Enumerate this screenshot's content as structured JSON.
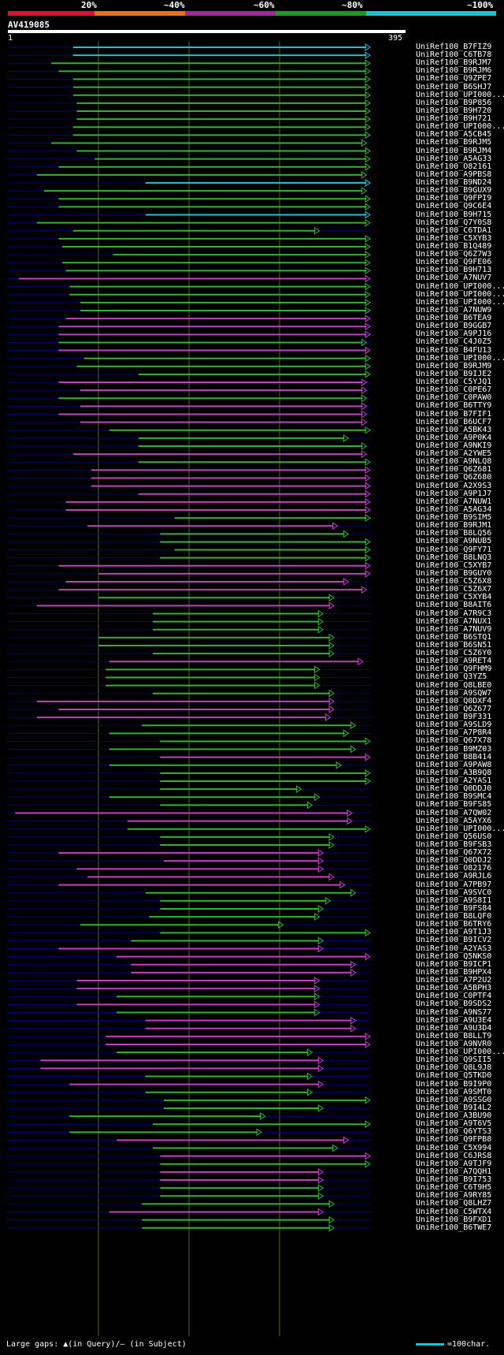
{
  "legend": {
    "labels": [
      "20%",
      "~40%",
      "~60%",
      "~80%",
      "~100%"
    ],
    "colors": [
      "#e0102d",
      "#e8701a",
      "#a0289b",
      "#1b9a1f",
      "#19c3d3"
    ]
  },
  "query": {
    "id": "AV419085",
    "start": "1",
    "end": "395"
  },
  "footer": {
    "gaps_label": "Large gaps: ▲(in Query)/— (in Subject)",
    "scale_label": "=100char."
  },
  "colors": {
    "cyan": "#19c3d3",
    "green": "#2fb52f",
    "magenta": "#c43fc3",
    "guide": "#000080",
    "grid": "#4d6b1a"
  },
  "hits": [
    {
      "name": "UniRef100_B7FIZ9",
      "color": "cyan",
      "start": 18,
      "end": 100
    },
    {
      "name": "UniRef100_C6TB78",
      "color": "cyan",
      "start": 18,
      "end": 100
    },
    {
      "name": "UniRef100_B9RJM7",
      "color": "green",
      "start": 12,
      "end": 100
    },
    {
      "name": "UniRef100_B9RJM6",
      "color": "green",
      "start": 14,
      "end": 100
    },
    {
      "name": "UniRef100_Q9ZPE7",
      "color": "green",
      "start": 18,
      "end": 100
    },
    {
      "name": "UniRef100_B6SHJ7",
      "color": "green",
      "start": 18,
      "end": 100
    },
    {
      "name": "UniRef100_UPI000...",
      "color": "green",
      "start": 18,
      "end": 100
    },
    {
      "name": "UniRef100_B9P856",
      "color": "green",
      "start": 19,
      "end": 100
    },
    {
      "name": "UniRef100_B9H720",
      "color": "green",
      "start": 19,
      "end": 100
    },
    {
      "name": "UniRef100_B9H721",
      "color": "green",
      "start": 19,
      "end": 100
    },
    {
      "name": "UniRef100_UPI000...",
      "color": "green",
      "start": 18,
      "end": 100
    },
    {
      "name": "UniRef100_A5CB45",
      "color": "green",
      "start": 18,
      "end": 100
    },
    {
      "name": "UniRef100_B9RJM5",
      "color": "green",
      "start": 12,
      "end": 99
    },
    {
      "name": "UniRef100_B9RJM4",
      "color": "green",
      "start": 19,
      "end": 100
    },
    {
      "name": "UniRef100_A5AG33",
      "color": "green",
      "start": 24,
      "end": 100
    },
    {
      "name": "UniRef100_O82161",
      "color": "green",
      "start": 14,
      "end": 100
    },
    {
      "name": "UniRef100_A9PBS8",
      "color": "green",
      "start": 8,
      "end": 99
    },
    {
      "name": "UniRef100_B9ND24",
      "color": "cyan",
      "start": 38,
      "end": 100
    },
    {
      "name": "UniRef100_B9GUX9",
      "color": "green",
      "start": 10,
      "end": 99
    },
    {
      "name": "UniRef100_Q9FPI9",
      "color": "green",
      "start": 14,
      "end": 100
    },
    {
      "name": "UniRef100_Q9C6E4",
      "color": "green",
      "start": 14,
      "end": 100
    },
    {
      "name": "UniRef100_B9H715",
      "color": "cyan",
      "start": 38,
      "end": 100
    },
    {
      "name": "UniRef100_Q7Y0S8",
      "color": "green",
      "start": 8,
      "end": 100
    },
    {
      "name": "UniRef100_C6TDA1",
      "color": "green",
      "start": 18,
      "end": 86
    },
    {
      "name": "UniRef100_C5XYB3",
      "color": "green",
      "start": 14,
      "end": 100
    },
    {
      "name": "UniRef100_B1Q489",
      "color": "green",
      "start": 15,
      "end": 100
    },
    {
      "name": "UniRef100_Q6Z7W3",
      "color": "green",
      "start": 29,
      "end": 100
    },
    {
      "name": "UniRef100_Q9FE06",
      "color": "green",
      "start": 15,
      "end": 100
    },
    {
      "name": "UniRef100_B9H713",
      "color": "green",
      "start": 16,
      "end": 100
    },
    {
      "name": "UniRef100_A7NUV7",
      "color": "magenta",
      "start": 3,
      "end": 100
    },
    {
      "name": "UniRef100_UPI000...",
      "color": "green",
      "start": 17,
      "end": 100
    },
    {
      "name": "UniRef100_UPI000...",
      "color": "green",
      "start": 17,
      "end": 100
    },
    {
      "name": "UniRef100_UPI000...",
      "color": "green",
      "start": 20,
      "end": 100
    },
    {
      "name": "UniRef100_A7NUW9",
      "color": "green",
      "start": 20,
      "end": 100
    },
    {
      "name": "UniRef100_B6TEA9",
      "color": "magenta",
      "start": 16,
      "end": 100
    },
    {
      "name": "UniRef100_B9GGB7",
      "color": "magenta",
      "start": 14,
      "end": 100
    },
    {
      "name": "UniRef100_A9PJ16",
      "color": "magenta",
      "start": 14,
      "end": 100
    },
    {
      "name": "UniRef100_C4J0Z5",
      "color": "green",
      "start": 14,
      "end": 99
    },
    {
      "name": "UniRef100_B4FU13",
      "color": "magenta",
      "start": 14,
      "end": 100
    },
    {
      "name": "UniRef100_UPI000...",
      "color": "green",
      "start": 21,
      "end": 100
    },
    {
      "name": "UniRef100_B9RJM9",
      "color": "green",
      "start": 19,
      "end": 100
    },
    {
      "name": "UniRef100_B9IJE2",
      "color": "green",
      "start": 36,
      "end": 100
    },
    {
      "name": "UniRef100_C5YJQ1",
      "color": "magenta",
      "start": 14,
      "end": 99
    },
    {
      "name": "UniRef100_C0PE67",
      "color": "magenta",
      "start": 20,
      "end": 99
    },
    {
      "name": "UniRef100_C0PAW0",
      "color": "green",
      "start": 14,
      "end": 99
    },
    {
      "name": "UniRef100_B6TTY9",
      "color": "magenta",
      "start": 20,
      "end": 99
    },
    {
      "name": "UniRef100_B7FIF1",
      "color": "magenta",
      "start": 14,
      "end": 99
    },
    {
      "name": "UniRef100_B6UCF7",
      "color": "magenta",
      "start": 20,
      "end": 99
    },
    {
      "name": "UniRef100_A5BK43",
      "color": "green",
      "start": 28,
      "end": 100
    },
    {
      "name": "UniRef100_A9P0K4",
      "color": "green",
      "start": 36,
      "end": 94
    },
    {
      "name": "UniRef100_A9NKI9",
      "color": "green",
      "start": 36,
      "end": 99
    },
    {
      "name": "UniRef100_A2YWE5",
      "color": "magenta",
      "start": 18,
      "end": 99
    },
    {
      "name": "UniRef100_A9NLQ8",
      "color": "green",
      "start": 36,
      "end": 100
    },
    {
      "name": "UniRef100_Q6Z681",
      "color": "magenta",
      "start": 23,
      "end": 100
    },
    {
      "name": "UniRef100_Q6Z680",
      "color": "magenta",
      "start": 23,
      "end": 100
    },
    {
      "name": "UniRef100_A2X9S3",
      "color": "magenta",
      "start": 23,
      "end": 100
    },
    {
      "name": "UniRef100_A9P1J7",
      "color": "magenta",
      "start": 36,
      "end": 100
    },
    {
      "name": "UniRef100_A7NUW1",
      "color": "magenta",
      "start": 16,
      "end": 100
    },
    {
      "name": "UniRef100_A5AG34",
      "color": "magenta",
      "start": 16,
      "end": 100
    },
    {
      "name": "UniRef100_B9SIM5",
      "color": "green",
      "start": 46,
      "end": 100
    },
    {
      "name": "UniRef100_B9RJM1",
      "color": "magenta",
      "start": 22,
      "end": 91
    },
    {
      "name": "UniRef100_B8LQ56",
      "color": "green",
      "start": 42,
      "end": 94
    },
    {
      "name": "UniRef100_A9NUB5",
      "color": "green",
      "start": 42,
      "end": 100
    },
    {
      "name": "UniRef100_Q9FY71",
      "color": "green",
      "start": 46,
      "end": 100
    },
    {
      "name": "UniRef100_B8LNQ3",
      "color": "green",
      "start": 42,
      "end": 100
    },
    {
      "name": "UniRef100_C5XYB7",
      "color": "magenta",
      "start": 14,
      "end": 100
    },
    {
      "name": "UniRef100_B9GUY0",
      "color": "magenta",
      "start": 25,
      "end": 100
    },
    {
      "name": "UniRef100_C5Z6X8",
      "color": "magenta",
      "start": 16,
      "end": 94
    },
    {
      "name": "UniRef100_C5Z6X7",
      "color": "magenta",
      "start": 14,
      "end": 99
    },
    {
      "name": "UniRef100_C5XYB4",
      "color": "green",
      "start": 25,
      "end": 90
    },
    {
      "name": "UniRef100_B8AIT6",
      "color": "magenta",
      "start": 8,
      "end": 90
    },
    {
      "name": "UniRef100_A7R9C3",
      "color": "green",
      "start": 40,
      "end": 87
    },
    {
      "name": "UniRef100_A7NUX1",
      "color": "green",
      "start": 40,
      "end": 87
    },
    {
      "name": "UniRef100_A7NUV9",
      "color": "green",
      "start": 40,
      "end": 87
    },
    {
      "name": "UniRef100_B6STQ1",
      "color": "green",
      "start": 25,
      "end": 90
    },
    {
      "name": "UniRef100_B6SN51",
      "color": "green",
      "start": 25,
      "end": 90
    },
    {
      "name": "UniRef100_C5Z6Y0",
      "color": "green",
      "start": 40,
      "end": 90
    },
    {
      "name": "UniRef100_A9RET4",
      "color": "magenta",
      "start": 28,
      "end": 98
    },
    {
      "name": "UniRef100_Q9FHM9",
      "color": "green",
      "start": 27,
      "end": 86
    },
    {
      "name": "UniRef100_Q3YZ5",
      "color": "green",
      "start": 27,
      "end": 86
    },
    {
      "name": "UniRef100_Q8LBE0",
      "color": "green",
      "start": 27,
      "end": 86
    },
    {
      "name": "UniRef100_A9SQW7",
      "color": "green",
      "start": 40,
      "end": 90
    },
    {
      "name": "UniRef100_Q0DXF4",
      "color": "magenta",
      "start": 8,
      "end": 90
    },
    {
      "name": "UniRef100_Q6Z677",
      "color": "magenta",
      "start": 14,
      "end": 90
    },
    {
      "name": "UniRef100_B9F331",
      "color": "magenta",
      "start": 8,
      "end": 89
    },
    {
      "name": "UniRef100_A9SLD9",
      "color": "green",
      "start": 37,
      "end": 96
    },
    {
      "name": "UniRef100_A7P8R4",
      "color": "green",
      "start": 28,
      "end": 94
    },
    {
      "name": "UniRef100_Q67X78",
      "color": "green",
      "start": 42,
      "end": 100
    },
    {
      "name": "UniRef100_B9MZ03",
      "color": "green",
      "start": 28,
      "end": 96
    },
    {
      "name": "UniRef100_B8B414",
      "color": "magenta",
      "start": 42,
      "end": 100
    },
    {
      "name": "UniRef100_A9PAW8",
      "color": "green",
      "start": 28,
      "end": 92
    },
    {
      "name": "UniRef100_A3B9Q8",
      "color": "green",
      "start": 42,
      "end": 100
    },
    {
      "name": "UniRef100_A2YAS1",
      "color": "green",
      "start": 42,
      "end": 100
    },
    {
      "name": "UniRef100_Q0DDJ0",
      "color": "green",
      "start": 42,
      "end": 81
    },
    {
      "name": "UniRef100_B9SMC4",
      "color": "green",
      "start": 28,
      "end": 86
    },
    {
      "name": "UniRef100_B9FS85",
      "color": "green",
      "start": 42,
      "end": 84
    },
    {
      "name": "UniRef100_A7QW02",
      "color": "magenta",
      "start": 2,
      "end": 95
    },
    {
      "name": "UniRef100_A5AYX6",
      "color": "magenta",
      "start": 33,
      "end": 95
    },
    {
      "name": "UniRef100_UPI000...",
      "color": "green",
      "start": 33,
      "end": 100
    },
    {
      "name": "UniRef100_Q56US0",
      "color": "green",
      "start": 42,
      "end": 90
    },
    {
      "name": "UniRef100_B9FSB3",
      "color": "green",
      "start": 42,
      "end": 90
    },
    {
      "name": "UniRef100_Q67X72",
      "color": "magenta",
      "start": 14,
      "end": 87
    },
    {
      "name": "UniRef100_Q0DDJ2",
      "color": "magenta",
      "start": 43,
      "end": 87
    },
    {
      "name": "UniRef100_O82176",
      "color": "magenta",
      "start": 19,
      "end": 87
    },
    {
      "name": "UniRef100_A9RJL6",
      "color": "magenta",
      "start": 22,
      "end": 90
    },
    {
      "name": "UniRef100_A7PB97",
      "color": "magenta",
      "start": 14,
      "end": 93
    },
    {
      "name": "UniRef100_A9SVC0",
      "color": "green",
      "start": 38,
      "end": 96
    },
    {
      "name": "UniRef100_A9S8I1",
      "color": "green",
      "start": 42,
      "end": 89
    },
    {
      "name": "UniRef100_B9FS84",
      "color": "green",
      "start": 42,
      "end": 87
    },
    {
      "name": "UniRef100_B8LQF0",
      "color": "green",
      "start": 39,
      "end": 86
    },
    {
      "name": "UniRef100_B6TRY6",
      "color": "green",
      "start": 20,
      "end": 76
    },
    {
      "name": "UniRef100_A9T1J3",
      "color": "green",
      "start": 42,
      "end": 100
    },
    {
      "name": "UniRef100_B9ICV2",
      "color": "green",
      "start": 34,
      "end": 87
    },
    {
      "name": "UniRef100_A2YAS3",
      "color": "magenta",
      "start": 14,
      "end": 87
    },
    {
      "name": "UniRef100_Q5NKS0",
      "color": "magenta",
      "start": 30,
      "end": 100
    },
    {
      "name": "UniRef100_B9ICP1",
      "color": "magenta",
      "start": 34,
      "end": 96
    },
    {
      "name": "UniRef100_B9HPX4",
      "color": "magenta",
      "start": 34,
      "end": 96
    },
    {
      "name": "UniRef100_A7P2U2",
      "color": "magenta",
      "start": 19,
      "end": 86
    },
    {
      "name": "UniRef100_A5BPH3",
      "color": "magenta",
      "start": 19,
      "end": 86
    },
    {
      "name": "UniRef100_C0PTF4",
      "color": "green",
      "start": 30,
      "end": 86
    },
    {
      "name": "UniRef100_B9SDS2",
      "color": "magenta",
      "start": 19,
      "end": 86
    },
    {
      "name": "UniRef100_A9NS77",
      "color": "green",
      "start": 30,
      "end": 86
    },
    {
      "name": "UniRef100_A9U3E4",
      "color": "magenta",
      "start": 38,
      "end": 96
    },
    {
      "name": "UniRef100_A9U3D4",
      "color": "magenta",
      "start": 38,
      "end": 96
    },
    {
      "name": "UniRef100_B8LLT9",
      "color": "magenta",
      "start": 27,
      "end": 100
    },
    {
      "name": "UniRef100_A9NVR0",
      "color": "magenta",
      "start": 27,
      "end": 100
    },
    {
      "name": "UniRef100_UPI000...",
      "color": "green",
      "start": 30,
      "end": 84
    },
    {
      "name": "UniRef100_Q9SII5",
      "color": "magenta",
      "start": 9,
      "end": 87
    },
    {
      "name": "UniRef100_Q8L9J8",
      "color": "magenta",
      "start": 9,
      "end": 87
    },
    {
      "name": "UniRef100_Q5TKD0",
      "color": "green",
      "start": 38,
      "end": 84
    },
    {
      "name": "UniRef100_B9I9P0",
      "color": "magenta",
      "start": 17,
      "end": 87
    },
    {
      "name": "UniRef100_A9SMT0",
      "color": "green",
      "start": 38,
      "end": 84
    },
    {
      "name": "UniRef100_A9SSG0",
      "color": "green",
      "start": 43,
      "end": 100
    },
    {
      "name": "UniRef100_B9I4L2",
      "color": "green",
      "start": 43,
      "end": 87
    },
    {
      "name": "UniRef100_A3BU90",
      "color": "green",
      "start": 17,
      "end": 71
    },
    {
      "name": "UniRef100_A9T6V5",
      "color": "green",
      "start": 40,
      "end": 100
    },
    {
      "name": "UniRef100_Q6YTS3",
      "color": "green",
      "start": 17,
      "end": 70
    },
    {
      "name": "UniRef100_Q9FPB8",
      "color": "magenta",
      "start": 30,
      "end": 94
    },
    {
      "name": "UniRef100_C5X994",
      "color": "green",
      "start": 40,
      "end": 91
    },
    {
      "name": "UniRef100_C6JRS8",
      "color": "magenta",
      "start": 42,
      "end": 100
    },
    {
      "name": "UniRef100_A9TJF9",
      "color": "green",
      "start": 42,
      "end": 100
    },
    {
      "name": "UniRef100_A7QQH1",
      "color": "magenta",
      "start": 42,
      "end": 87
    },
    {
      "name": "UniRef100_B9I753",
      "color": "magenta",
      "start": 42,
      "end": 87
    },
    {
      "name": "UniRef100_C6T9H5",
      "color": "green",
      "start": 42,
      "end": 87
    },
    {
      "name": "UniRef100_A9RY85",
      "color": "green",
      "start": 42,
      "end": 87
    },
    {
      "name": "UniRef100_Q8LHZ7",
      "color": "green",
      "start": 37,
      "end": 90
    },
    {
      "name": "UniRef100_C5WTX4",
      "color": "magenta",
      "start": 28,
      "end": 87
    },
    {
      "name": "UniRef100_B9FXD1",
      "color": "green",
      "start": 37,
      "end": 90
    },
    {
      "name": "UniRef100_B6TWE7",
      "color": "green",
      "start": 37,
      "end": 90
    }
  ]
}
